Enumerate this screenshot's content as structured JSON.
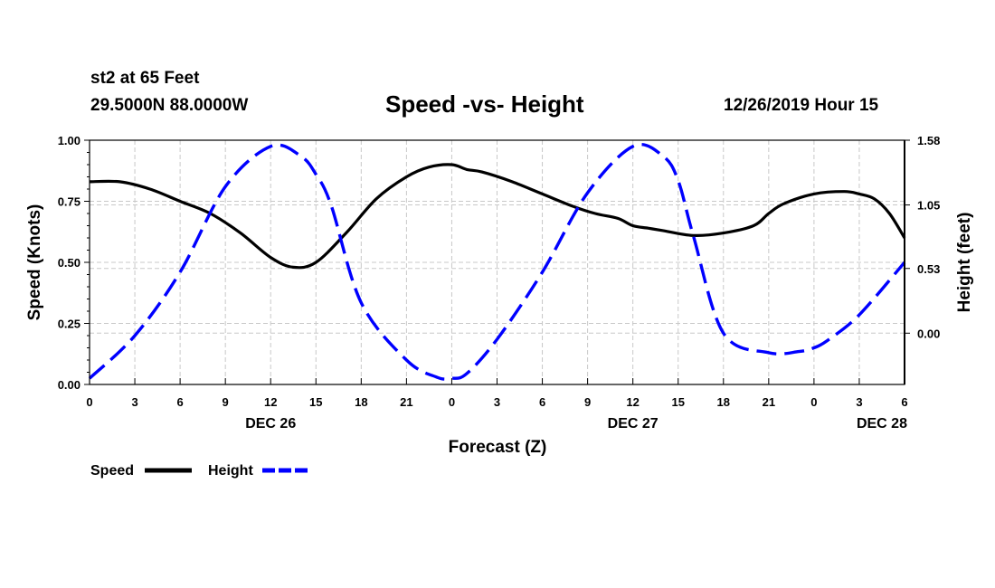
{
  "header": {
    "station": "st2 at 65 Feet",
    "coords": "29.5000N 88.0000W",
    "title": "Speed -vs- Height",
    "timestamp": "12/26/2019 Hour 15"
  },
  "chart_data": {
    "type": "line",
    "title": "Speed -vs- Height",
    "xlabel": "Forecast (Z)",
    "ylabel_left": "Speed (Knots)",
    "ylabel_right": "Height (feet)",
    "xlim": [
      0,
      54
    ],
    "ylim_left": [
      0,
      1.0
    ],
    "ylim_right": [
      -0.42,
      1.58
    ],
    "x_tick_values": [
      0,
      3,
      6,
      9,
      12,
      15,
      18,
      21,
      24,
      27,
      30,
      33,
      36,
      39,
      42,
      45,
      48,
      51,
      54
    ],
    "x_tick_labels": [
      "0",
      "3",
      "6",
      "9",
      "12",
      "15",
      "18",
      "21",
      "0",
      "3",
      "6",
      "9",
      "12",
      "15",
      "18",
      "21",
      "0",
      "3",
      "6"
    ],
    "day_labels": [
      {
        "x": 12,
        "label": "DEC 26"
      },
      {
        "x": 36,
        "label": "DEC 27"
      },
      {
        "x": 52.5,
        "label": "DEC 28"
      }
    ],
    "y_left_ticks": [
      0.0,
      0.25,
      0.5,
      0.75,
      1.0
    ],
    "y_left_tick_labels": [
      "0.00",
      "0.25",
      "0.50",
      "0.75",
      "1.00"
    ],
    "y_right_ticks": [
      0.0,
      0.53,
      1.05,
      1.58
    ],
    "y_right_tick_labels": [
      "0.00",
      "0.53",
      "1.05",
      "1.58"
    ],
    "grid": true,
    "legend_position": "bottom-left",
    "series": [
      {
        "name": "Speed",
        "axis": "left",
        "color": "#000000",
        "style": "solid",
        "x": [
          0,
          2,
          4,
          6,
          8,
          10,
          12,
          13.5,
          15,
          17,
          19,
          21,
          22.5,
          24,
          25,
          26,
          28,
          30,
          32,
          33.5,
          35,
          36,
          37,
          38,
          40,
          42,
          44,
          45,
          46,
          48,
          50,
          51,
          52,
          53,
          54
        ],
        "values": [
          0.83,
          0.83,
          0.8,
          0.75,
          0.7,
          0.62,
          0.52,
          0.48,
          0.5,
          0.62,
          0.76,
          0.85,
          0.89,
          0.9,
          0.88,
          0.87,
          0.83,
          0.78,
          0.73,
          0.7,
          0.68,
          0.65,
          0.64,
          0.63,
          0.61,
          0.62,
          0.65,
          0.7,
          0.74,
          0.78,
          0.79,
          0.78,
          0.76,
          0.7,
          0.6
        ]
      },
      {
        "name": "Height",
        "axis": "right",
        "color": "#0000ff",
        "style": "dashed",
        "x": [
          0,
          3,
          6,
          9,
          12,
          14,
          15,
          16,
          18,
          21,
          23,
          24,
          25,
          27,
          30,
          33,
          36,
          38,
          39,
          40,
          42,
          45,
          47,
          48,
          49,
          51,
          54
        ],
        "values": [
          -0.37,
          -0.02,
          0.5,
          1.2,
          1.53,
          1.45,
          1.3,
          1.05,
          0.25,
          -0.22,
          -0.36,
          -0.37,
          -0.33,
          -0.05,
          0.5,
          1.15,
          1.53,
          1.45,
          1.25,
          0.8,
          0.0,
          -0.16,
          -0.15,
          -0.12,
          -0.05,
          0.15,
          0.58
        ]
      }
    ]
  }
}
